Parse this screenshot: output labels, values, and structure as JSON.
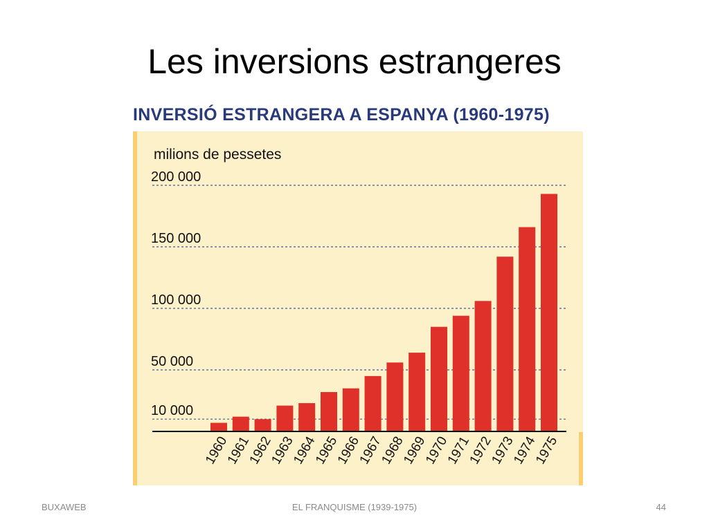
{
  "slide": {
    "title": "Les inversions estrangeres",
    "footer_left": "BUXAWEB",
    "footer_center": "EL FRANQUISME (1939-1975)",
    "page_number": "44"
  },
  "colors": {
    "bar": "#e0302a",
    "panel": "#fdf1c9",
    "panel_edge": "#f9cf71",
    "heading": "#2a3a78",
    "gridline": "#3c5a9a",
    "axis": "#000000"
  },
  "chart_data": {
    "type": "bar",
    "title": "INVERSIÓ ESTRANGERA A ESPANYA (1960-1975)",
    "ylabel": "milions de pessetes",
    "xlabel": "",
    "categories": [
      "1960",
      "1961",
      "1962",
      "1963",
      "1964",
      "1965",
      "1966",
      "1967",
      "1968",
      "1969",
      "1970",
      "1971",
      "1972",
      "1973",
      "1974",
      "1975"
    ],
    "values": [
      7000,
      12000,
      10000,
      21000,
      23000,
      32000,
      35000,
      45000,
      56000,
      64000,
      85000,
      94000,
      106000,
      142000,
      166000,
      193000
    ],
    "ylim": [
      0,
      200000
    ],
    "yticks": [
      10000,
      50000,
      100000,
      150000,
      200000
    ],
    "ytick_labels": [
      "10 000",
      "50 000",
      "100 000",
      "150 000",
      "200 000"
    ],
    "grid": true,
    "grid_style": "dashed",
    "legend": "none"
  }
}
